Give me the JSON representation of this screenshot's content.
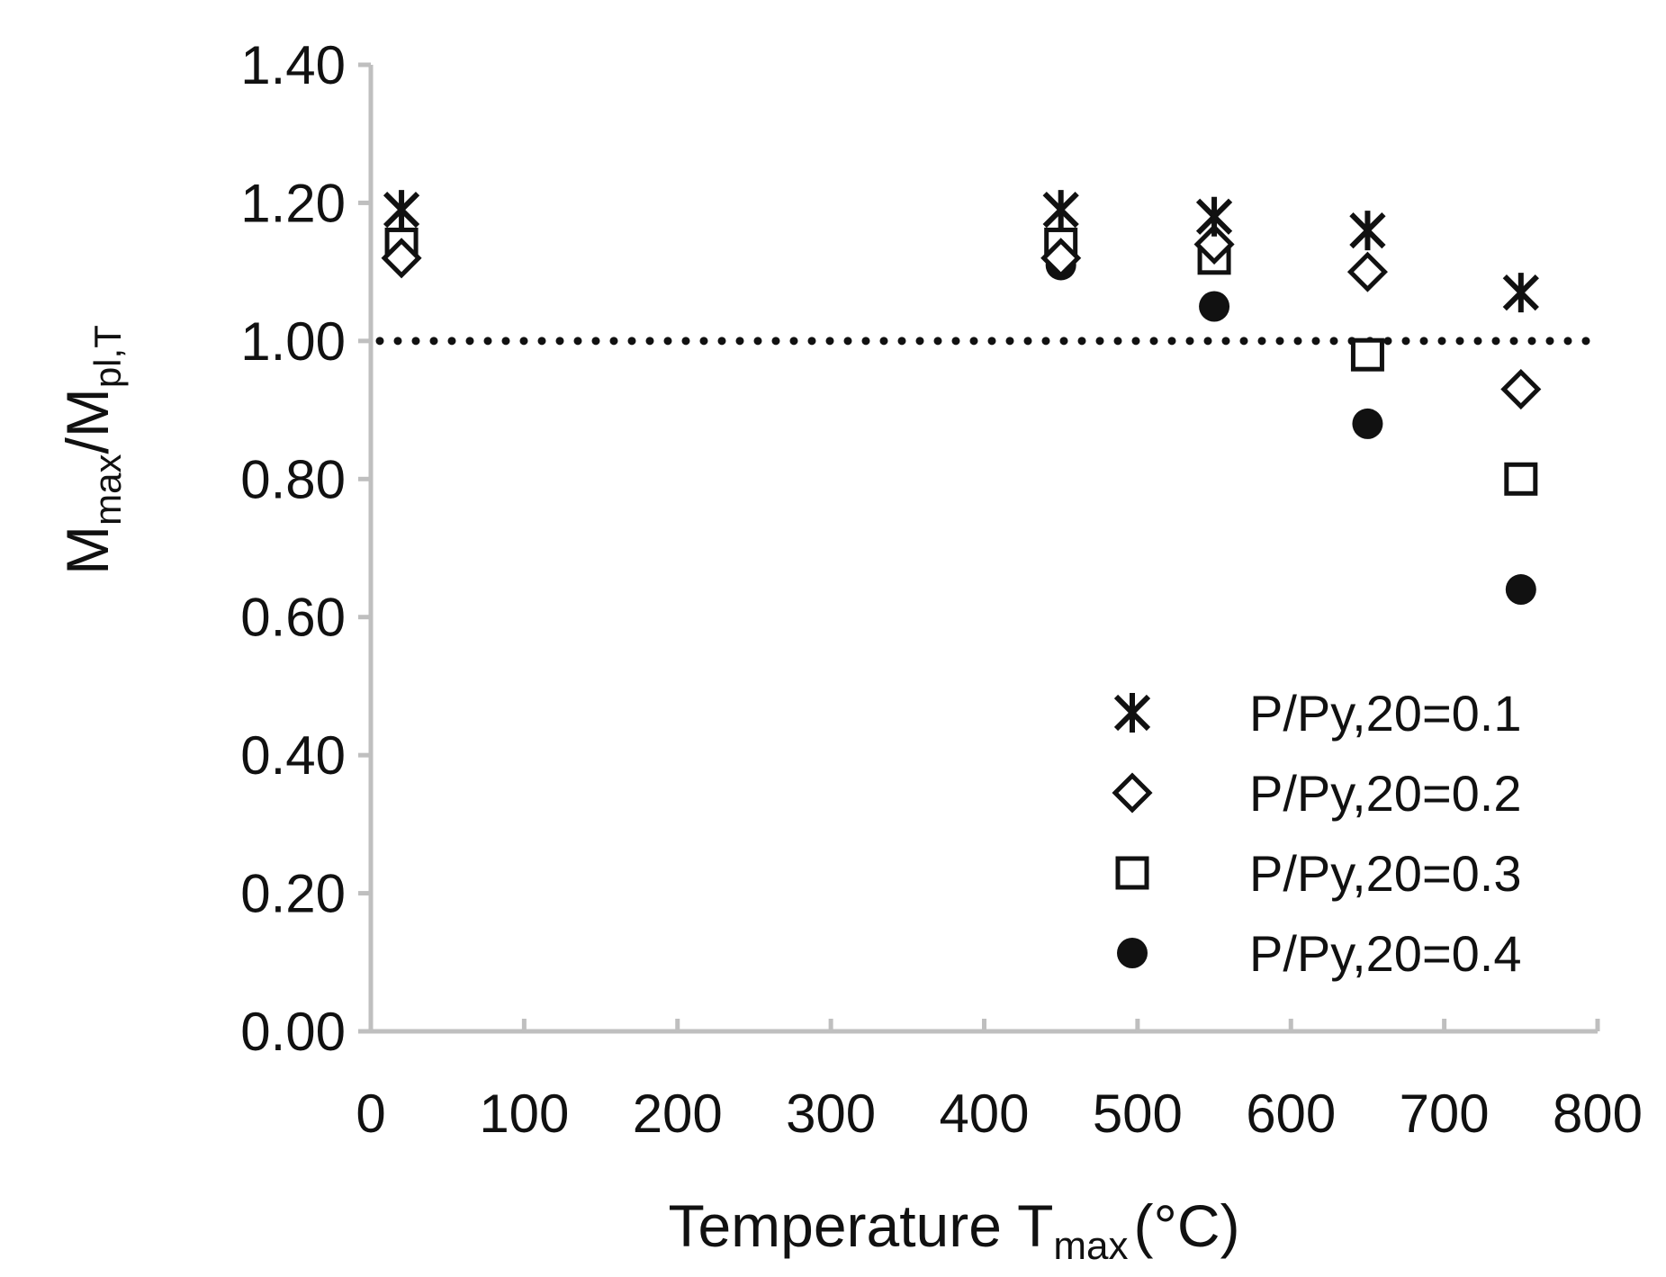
{
  "chart_data": {
    "type": "scatter",
    "title": "",
    "xlabel": {
      "main": "Temperature T",
      "sub": "max",
      "suffix": "(°C)"
    },
    "ylabel": {
      "m1": "M",
      "sub1": "max",
      "slash": "/",
      "m2": "M",
      "sub2": "pl,T"
    },
    "xlim": [
      0,
      800
    ],
    "ylim": [
      0,
      1.4
    ],
    "xticks": [
      0,
      100,
      200,
      300,
      400,
      500,
      600,
      700,
      800
    ],
    "xtick_labels": [
      "0",
      "100",
      "200",
      "300",
      "400",
      "500",
      "600",
      "700",
      "800"
    ],
    "yticks": [
      0,
      0.2,
      0.4,
      0.6,
      0.8,
      1.0,
      1.2,
      1.4
    ],
    "ytick_labels": [
      "0.00",
      "0.20",
      "0.40",
      "0.60",
      "0.80",
      "1.00",
      "1.20",
      "1.40"
    ],
    "grid": false,
    "legend_position": "bottom-right",
    "reference_line": {
      "y": 1.0,
      "style": "dotted"
    },
    "series": [
      {
        "name": "P/Py,20=0.1",
        "marker": "asterisk",
        "x": [
          20,
          450,
          550,
          650,
          750
        ],
        "y": [
          1.19,
          1.19,
          1.18,
          1.16,
          1.07
        ]
      },
      {
        "name": "P/Py,20=0.2",
        "marker": "diamond",
        "x": [
          20,
          450,
          550,
          650,
          750
        ],
        "y": [
          1.12,
          1.12,
          1.14,
          1.1,
          0.93
        ]
      },
      {
        "name": "P/Py,20=0.3",
        "marker": "square",
        "x": [
          20,
          450,
          550,
          650,
          750
        ],
        "y": [
          1.14,
          1.14,
          1.12,
          0.98,
          0.8
        ]
      },
      {
        "name": "P/Py,20=0.4",
        "marker": "circle",
        "x": [
          20,
          450,
          550,
          650,
          750
        ],
        "y": [
          1.14,
          1.11,
          1.05,
          0.88,
          0.64
        ]
      }
    ]
  }
}
